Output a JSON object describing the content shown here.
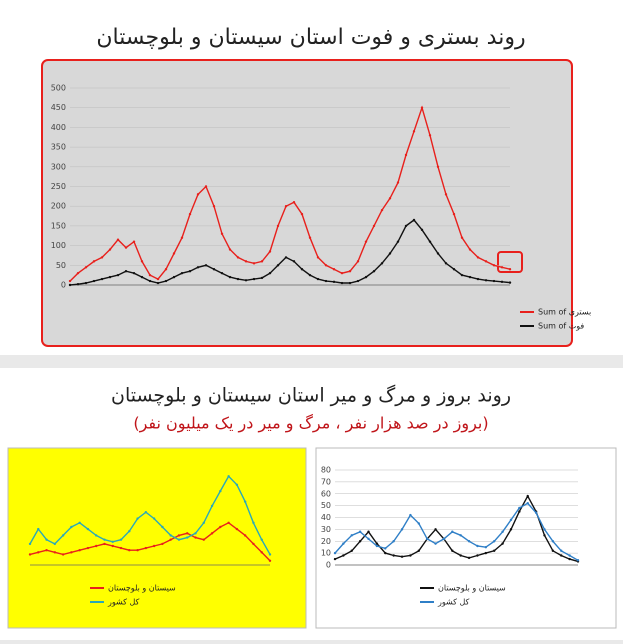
{
  "page": {
    "title": "روند بستری و فوت استان سیستان و بلوچستان",
    "section_title": "روند بروز و مرگ و میر استان سیستان و بلوچستان",
    "section_subtitle": "(بروز در صد هزار نفر ، مرگ و میر در یک میلیون نفر)"
  },
  "chart_data": [
    {
      "type": "line",
      "ylim": [
        0,
        500
      ],
      "yticks": [
        0,
        50,
        100,
        150,
        200,
        250,
        300,
        350,
        400,
        450,
        500
      ],
      "series": [
        {
          "name": "Sum of بستری",
          "color": "#e8201c",
          "values": [
            10,
            30,
            45,
            60,
            70,
            90,
            115,
            95,
            110,
            60,
            25,
            15,
            40,
            80,
            120,
            180,
            230,
            250,
            200,
            130,
            90,
            70,
            60,
            55,
            60,
            85,
            150,
            200,
            210,
            180,
            120,
            70,
            50,
            40,
            30,
            35,
            60,
            110,
            150,
            190,
            220,
            260,
            330,
            390,
            450,
            380,
            300,
            230,
            180,
            120,
            90,
            70,
            60,
            50,
            45,
            40
          ]
        },
        {
          "name": "Sum of فوت",
          "color": "#111111",
          "values": [
            0,
            2,
            5,
            10,
            15,
            20,
            25,
            35,
            30,
            20,
            10,
            5,
            10,
            20,
            30,
            35,
            45,
            50,
            40,
            30,
            20,
            15,
            12,
            15,
            18,
            30,
            50,
            70,
            60,
            40,
            25,
            15,
            10,
            8,
            5,
            5,
            10,
            20,
            35,
            55,
            80,
            110,
            150,
            165,
            140,
            110,
            80,
            55,
            40,
            25,
            20,
            15,
            12,
            10,
            8,
            6
          ]
        }
      ]
    },
    {
      "type": "line",
      "ylim": [
        0,
        45
      ],
      "series": [
        {
          "name": "سیستان و بلوچستان",
          "color": "#e8201c",
          "values": [
            5,
            6,
            7,
            6,
            5,
            6,
            7,
            8,
            9,
            10,
            9,
            8,
            7,
            7,
            8,
            9,
            10,
            12,
            14,
            15,
            13,
            12,
            15,
            18,
            20,
            17,
            14,
            10,
            6,
            2
          ]
        },
        {
          "name": "کل کشور",
          "color": "#2aa9b8",
          "values": [
            10,
            17,
            12,
            10,
            14,
            18,
            20,
            17,
            14,
            12,
            11,
            12,
            16,
            22,
            25,
            22,
            18,
            14,
            12,
            13,
            15,
            20,
            28,
            35,
            42,
            38,
            30,
            20,
            12,
            5
          ]
        }
      ]
    },
    {
      "type": "line",
      "ylim": [
        0,
        80
      ],
      "yticks": [
        0,
        10,
        20,
        30,
        40,
        50,
        60,
        70,
        80
      ],
      "series": [
        {
          "name": "سیستان و بلوچستان",
          "color": "#111111",
          "values": [
            5,
            8,
            12,
            20,
            28,
            18,
            10,
            8,
            7,
            8,
            12,
            22,
            30,
            22,
            12,
            8,
            6,
            8,
            10,
            12,
            18,
            30,
            45,
            58,
            45,
            25,
            12,
            8,
            5,
            3
          ]
        },
        {
          "name": "کل کشور",
          "color": "#2f7fc7",
          "values": [
            10,
            18,
            25,
            28,
            22,
            16,
            14,
            20,
            30,
            42,
            35,
            22,
            18,
            22,
            28,
            25,
            20,
            16,
            15,
            20,
            28,
            38,
            48,
            52,
            44,
            30,
            20,
            12,
            8,
            4
          ]
        }
      ]
    }
  ]
}
